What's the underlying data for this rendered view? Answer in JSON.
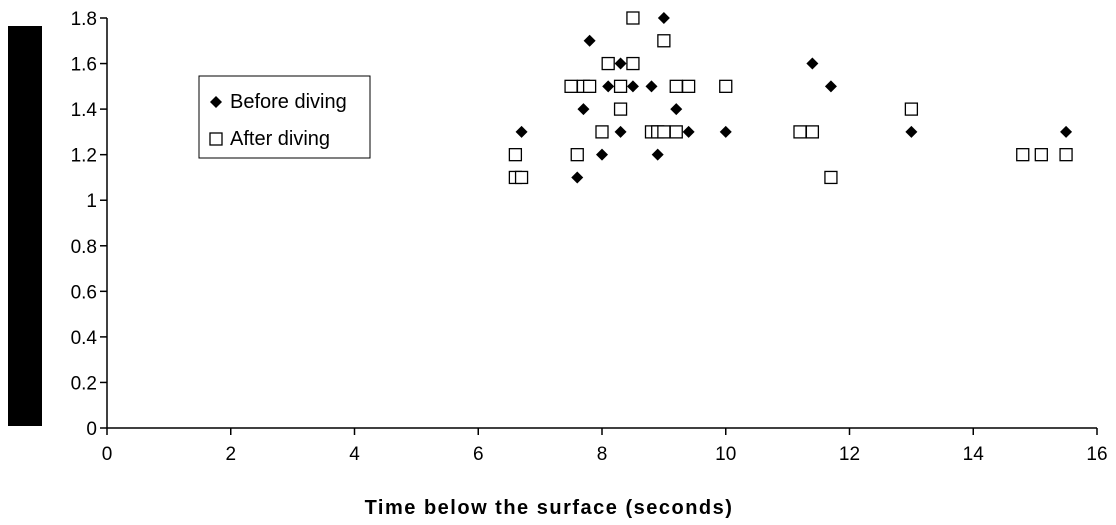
{
  "chart_data": {
    "type": "scatter",
    "title": "",
    "xlabel": "Time below the surface (seconds)",
    "ylabel": "",
    "xlim": [
      0,
      16
    ],
    "ylim": [
      0,
      1.8
    ],
    "x_ticks": [
      "0",
      "2",
      "4",
      "6",
      "8",
      "10",
      "12",
      "14",
      "16"
    ],
    "y_ticks": [
      "0",
      "0.2",
      "0.4",
      "0.6",
      "0.8",
      "1",
      "1.2",
      "1.4",
      "1.6",
      "1.8"
    ],
    "grid": false,
    "legend_position": "upper-left",
    "series": [
      {
        "name": "Before diving",
        "marker": "filled-diamond",
        "color": "#000000",
        "points": [
          [
            6.7,
            1.3
          ],
          [
            7.6,
            1.1
          ],
          [
            7.7,
            1.4
          ],
          [
            7.8,
            1.7
          ],
          [
            8.0,
            1.2
          ],
          [
            8.1,
            1.5
          ],
          [
            8.3,
            1.6
          ],
          [
            8.3,
            1.3
          ],
          [
            8.5,
            1.5
          ],
          [
            8.8,
            1.5
          ],
          [
            8.9,
            1.2
          ],
          [
            9.0,
            1.8
          ],
          [
            9.2,
            1.4
          ],
          [
            9.4,
            1.3
          ],
          [
            10.0,
            1.3
          ],
          [
            11.4,
            1.6
          ],
          [
            11.7,
            1.5
          ],
          [
            13.0,
            1.3
          ],
          [
            15.5,
            1.3
          ]
        ]
      },
      {
        "name": "After diving",
        "marker": "open-square",
        "color": "#000000",
        "points": [
          [
            6.6,
            1.1
          ],
          [
            6.7,
            1.1
          ],
          [
            6.6,
            1.2
          ],
          [
            7.5,
            1.5
          ],
          [
            7.6,
            1.2
          ],
          [
            7.7,
            1.5
          ],
          [
            7.8,
            1.5
          ],
          [
            8.0,
            1.3
          ],
          [
            8.1,
            1.6
          ],
          [
            8.3,
            1.5
          ],
          [
            8.3,
            1.4
          ],
          [
            8.5,
            1.6
          ],
          [
            8.5,
            1.8
          ],
          [
            8.8,
            1.3
          ],
          [
            8.9,
            1.3
          ],
          [
            9.0,
            1.7
          ],
          [
            9.0,
            1.3
          ],
          [
            9.2,
            1.5
          ],
          [
            9.2,
            1.3
          ],
          [
            9.4,
            1.5
          ],
          [
            10.0,
            1.5
          ],
          [
            11.2,
            1.3
          ],
          [
            11.4,
            1.3
          ],
          [
            11.7,
            1.1
          ],
          [
            13.0,
            1.4
          ],
          [
            14.8,
            1.2
          ],
          [
            15.1,
            1.2
          ],
          [
            15.5,
            1.2
          ]
        ]
      }
    ]
  },
  "legend": {
    "before_label": "Before diving",
    "after_label": "After diving"
  }
}
